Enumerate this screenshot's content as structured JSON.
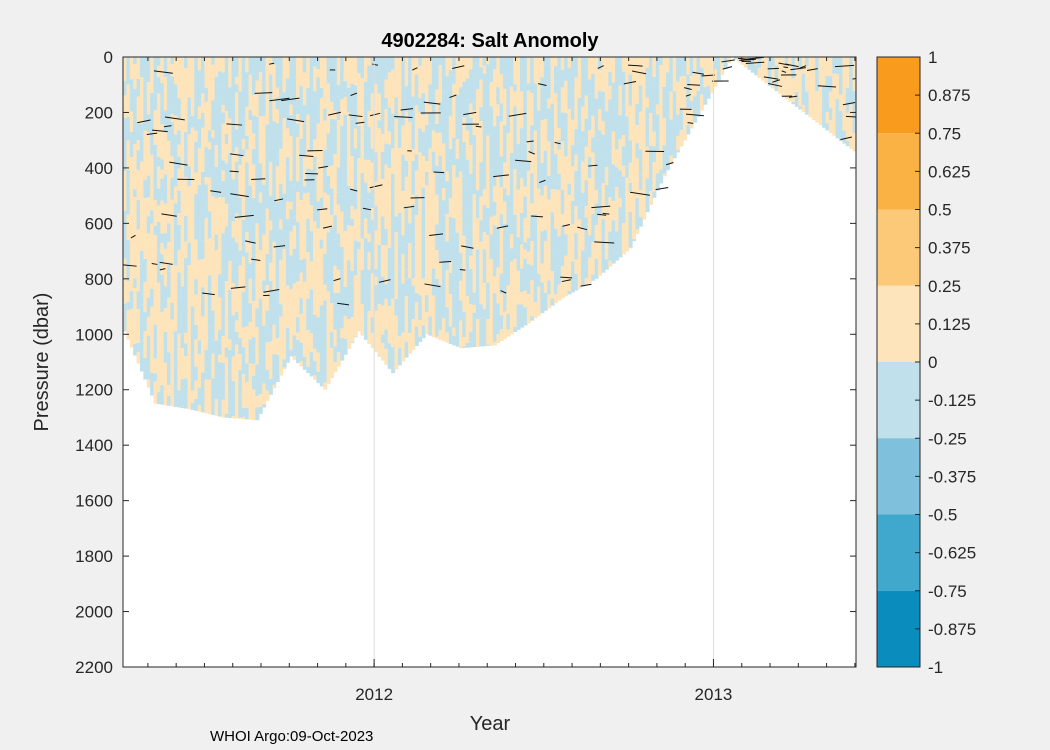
{
  "chart_data": {
    "type": "heatmap",
    "title": "4902284: Salt Anomoly",
    "xlabel": "Year",
    "ylabel": "Pressure (dbar)",
    "x_range": [
      2011.26,
      2013.42
    ],
    "x_ticks": [
      {
        "value": 2012,
        "label": "2012"
      },
      {
        "value": 2013,
        "label": "2013"
      }
    ],
    "y_range": [
      0,
      2200
    ],
    "y_reversed": true,
    "y_ticks": [
      0,
      200,
      400,
      600,
      800,
      1000,
      1200,
      1400,
      1600,
      1800,
      2000,
      2200
    ],
    "grid": "x-only",
    "colorbar": {
      "range": [
        -1,
        1
      ],
      "tick_labels": [
        "1",
        "0.875",
        "0.75",
        "0.625",
        "0.5",
        "0.375",
        "0.25",
        "0.125",
        "0",
        "-0.125",
        "-0.25",
        "-0.375",
        "-0.5",
        "-0.625",
        "-0.75",
        "-0.875",
        "-1"
      ],
      "bands": [
        {
          "from": 0.75,
          "to": 1,
          "color": "#f99b1c"
        },
        {
          "from": 0.5,
          "to": 0.75,
          "color": "#fbb244"
        },
        {
          "from": 0.25,
          "to": 0.5,
          "color": "#fcc978"
        },
        {
          "from": 0,
          "to": 0.25,
          "color": "#fde4ba"
        },
        {
          "from": -0.25,
          "to": 0,
          "color": "#c0e0ec"
        },
        {
          "from": -0.5,
          "to": -0.25,
          "color": "#7fc1dc"
        },
        {
          "from": -0.75,
          "to": -0.5,
          "color": "#40a8cd"
        },
        {
          "from": -1,
          "to": -0.75,
          "color": "#0a8cbc"
        }
      ]
    },
    "data_coverage": [
      {
        "x": 2011.26,
        "max_pressure": 990,
        "dominant": -0.125
      },
      {
        "x": 2011.35,
        "max_pressure": 1250,
        "dominant": -0.125
      },
      {
        "x": 2011.45,
        "max_pressure": 1270,
        "dominant": 0.125
      },
      {
        "x": 2011.55,
        "max_pressure": 1300,
        "dominant": -0.125
      },
      {
        "x": 2011.65,
        "max_pressure": 1310,
        "dominant": -0.125
      },
      {
        "x": 2011.75,
        "max_pressure": 1080,
        "dominant": 0.125
      },
      {
        "x": 2011.85,
        "max_pressure": 1200,
        "dominant": -0.125
      },
      {
        "x": 2011.95,
        "max_pressure": 990,
        "dominant": 0.125
      },
      {
        "x": 2012.05,
        "max_pressure": 1140,
        "dominant": 0.125
      },
      {
        "x": 2012.15,
        "max_pressure": 1000,
        "dominant": 0.125
      },
      {
        "x": 2012.25,
        "max_pressure": 1050,
        "dominant": -0.125
      },
      {
        "x": 2012.35,
        "max_pressure": 1040,
        "dominant": 0.125
      },
      {
        "x": 2012.45,
        "max_pressure": 960,
        "dominant": 0.125
      },
      {
        "x": 2012.55,
        "max_pressure": 870,
        "dominant": -0.125
      },
      {
        "x": 2012.65,
        "max_pressure": 800,
        "dominant": -0.125
      },
      {
        "x": 2012.75,
        "max_pressure": 690,
        "dominant": -0.125
      },
      {
        "x": 2012.85,
        "max_pressure": 430,
        "dominant": -0.125
      },
      {
        "x": 2013.05,
        "max_pressure": 0,
        "dominant": 0
      },
      {
        "x": 2013.42,
        "max_pressure": 350,
        "dominant": -0.125
      }
    ]
  },
  "footer": "WHOI Argo:09-Oct-2023"
}
